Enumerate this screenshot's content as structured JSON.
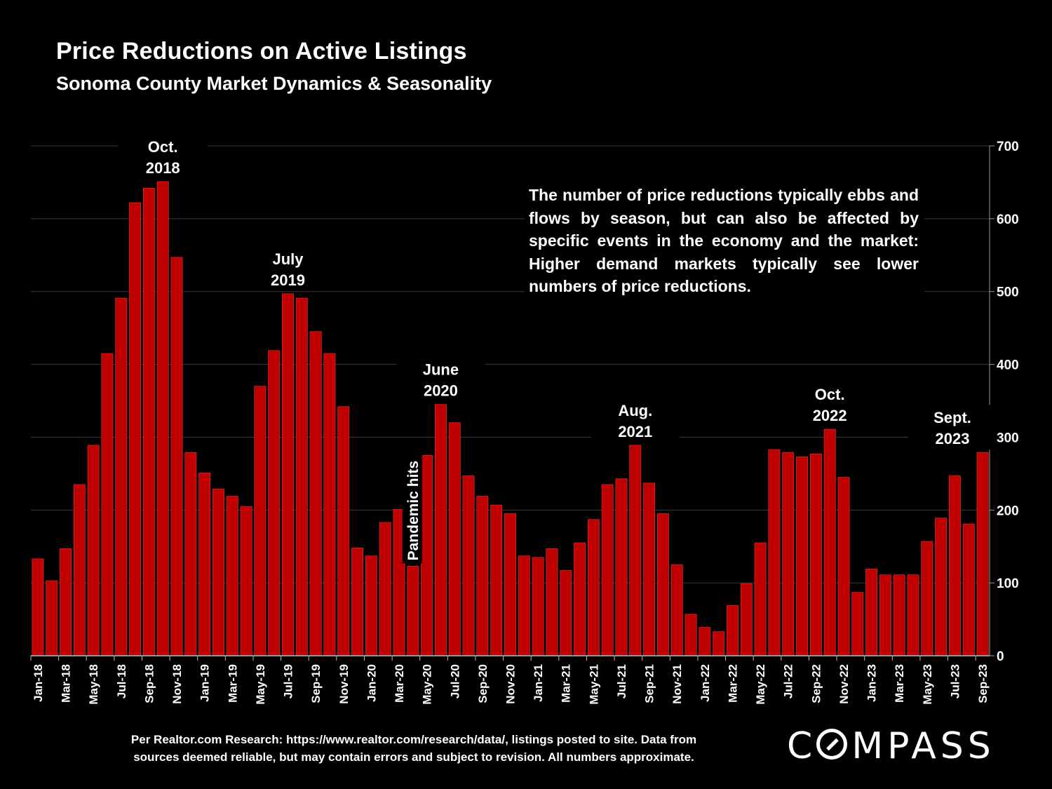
{
  "header": {
    "title": "Price Reductions on Active Listings",
    "subtitle": "Sonoma County Market Dynamics & Seasonality"
  },
  "note": "The number of price reductions typically ebbs and flows by season, but can also be affected by specific events in the economy and the market: Higher demand markets typically see lower numbers of price reductions.",
  "footer": {
    "line1": "Per Realtor.com Research:  https://www.realtor.com/research/data/, listings posted to site. Data from",
    "line2": "sources deemed reliable, but may contain errors and subject to revision. All numbers approximate."
  },
  "logo": {
    "prefix": "C",
    "suffix": "MPASS"
  },
  "colors": {
    "bar": "#c00000",
    "background": "#000000",
    "text": "#ffffff",
    "grid": "#3a3a3a"
  },
  "chart_data": {
    "type": "bar",
    "title": "Price Reductions on Active Listings",
    "subtitle": "Sonoma County Market Dynamics & Seasonality",
    "ylim": [
      0,
      700
    ],
    "yticks": [
      0,
      100,
      200,
      300,
      400,
      500,
      600,
      700
    ],
    "y_axis_side": "right",
    "grid": true,
    "categories": [
      "Jan-18",
      "Feb-18",
      "Mar-18",
      "Apr-18",
      "May-18",
      "Jun-18",
      "Jul-18",
      "Aug-18",
      "Sep-18",
      "Oct-18",
      "Nov-18",
      "Dec-18",
      "Jan-19",
      "Feb-19",
      "Mar-19",
      "Apr-19",
      "May-19",
      "Jun-19",
      "Jul-19",
      "Aug-19",
      "Sep-19",
      "Oct-19",
      "Nov-19",
      "Dec-19",
      "Jan-20",
      "Feb-20",
      "Mar-20",
      "Apr-20",
      "May-20",
      "Jun-20",
      "Jul-20",
      "Aug-20",
      "Sep-20",
      "Oct-20",
      "Nov-20",
      "Dec-20",
      "Jan-21",
      "Feb-21",
      "Mar-21",
      "Apr-21",
      "May-21",
      "Jun-21",
      "Jul-21",
      "Aug-21",
      "Sep-21",
      "Oct-21",
      "Nov-21",
      "Dec-21",
      "Jan-22",
      "Feb-22",
      "Mar-22",
      "Apr-22",
      "May-22",
      "Jun-22",
      "Jul-22",
      "Aug-22",
      "Sep-22",
      "Oct-22",
      "Nov-22",
      "Dec-22",
      "Jan-23",
      "Feb-23",
      "Mar-23",
      "Apr-23",
      "May-23",
      "Jun-23",
      "Jul-23",
      "Aug-23",
      "Sep-23"
    ],
    "values": [
      133,
      103,
      147,
      235,
      289,
      415,
      491,
      622,
      642,
      651,
      547,
      279,
      251,
      229,
      219,
      205,
      370,
      419,
      497,
      491,
      445,
      415,
      342,
      148,
      137,
      183,
      201,
      123,
      275,
      345,
      320,
      247,
      219,
      207,
      195,
      137,
      135,
      147,
      117,
      155,
      187,
      235,
      243,
      289,
      237,
      195,
      125,
      57,
      39,
      33,
      69,
      99,
      155,
      283,
      279,
      273,
      277,
      311,
      245,
      87,
      119,
      111,
      111,
      111,
      157,
      189,
      247,
      181,
      279
    ],
    "annotations": [
      {
        "category": "Oct-18",
        "line1": "Oct.",
        "line2": "2018"
      },
      {
        "category": "Jul-19",
        "line1": "July",
        "line2": "2019"
      },
      {
        "category": "Apr-20",
        "text": "Pandemic hits",
        "rotation": -90
      },
      {
        "category": "Jun-20",
        "line1": "June",
        "line2": "2020"
      },
      {
        "category": "Aug-21",
        "line1": "Aug.",
        "line2": "2021"
      },
      {
        "category": "Oct-22",
        "line1": "Oct.",
        "line2": "2022"
      },
      {
        "category": "Sep-23",
        "line1": "Sept.",
        "line2": "2023"
      }
    ]
  }
}
